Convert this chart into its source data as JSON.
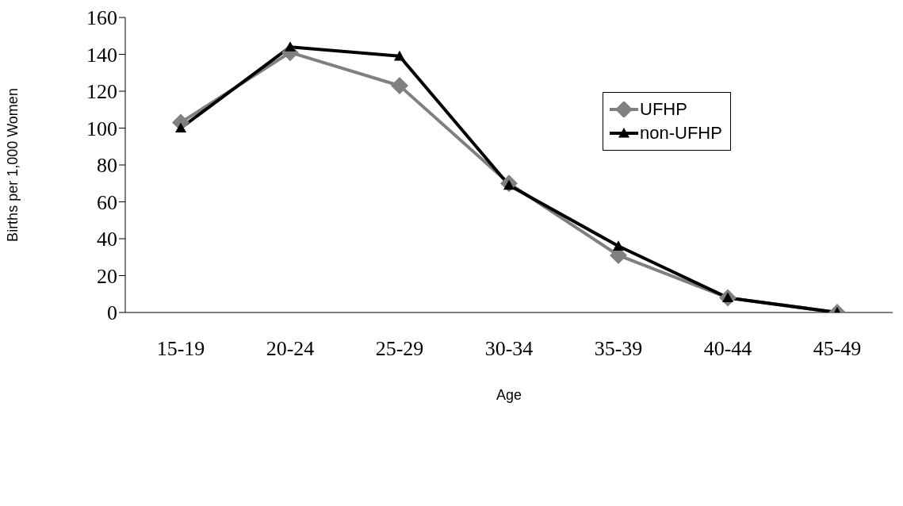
{
  "chart_data": {
    "type": "line",
    "xlabel": "Age",
    "ylabel": "Births per 1,000 Women",
    "categories": [
      "15-19",
      "20-24",
      "25-29",
      "30-34",
      "35-39",
      "40-44",
      "45-49"
    ],
    "series": [
      {
        "name": "UFHP",
        "color": "#808080",
        "marker": "diamond",
        "values": [
          103,
          141,
          123,
          70,
          31,
          8,
          0
        ]
      },
      {
        "name": "non-UFHP",
        "color": "#000000",
        "marker": "triangle",
        "values": [
          100,
          144,
          139,
          69,
          36,
          8,
          0
        ]
      }
    ],
    "ylim": [
      0,
      160
    ],
    "yticks": [
      0,
      20,
      40,
      60,
      80,
      100,
      120,
      140,
      160
    ],
    "grid": false,
    "legend": "top right",
    "line_style": "solid"
  }
}
